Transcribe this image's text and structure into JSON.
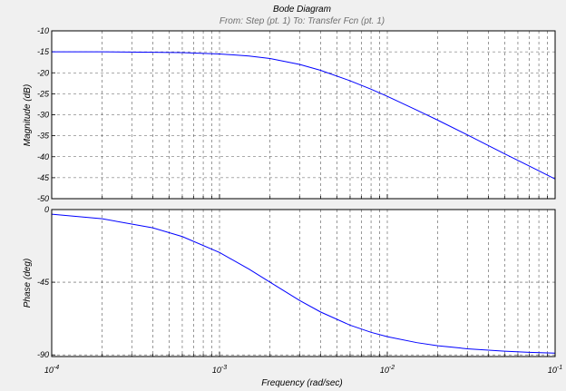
{
  "title": "Bode Diagram",
  "subtitle": "From: Step (pt. 1)  To: Transfer Fcn (pt. 1)",
  "chart_data": {
    "type": "line",
    "title": "Bode Diagram",
    "subtitle": "From: Step (pt. 1)  To: Transfer Fcn (pt. 1)",
    "xlabel": "Frequency  (rad/sec)",
    "xscale": "log",
    "xlim": [
      0.0001,
      0.1
    ],
    "x_tick_labels": [
      {
        "base": "10",
        "exp": "-4"
      },
      {
        "base": "10",
        "exp": "-3"
      },
      {
        "base": "10",
        "exp": "-2"
      },
      {
        "base": "10",
        "exp": "-1"
      }
    ],
    "grid": true,
    "line_color": "#0000ff",
    "panels": [
      {
        "name": "magnitude",
        "ylabel": "Magnitude (dB)",
        "ylim": [
          -50,
          -10
        ],
        "y_ticks": [
          "-10",
          "-15",
          "-20",
          "-25",
          "-30",
          "-35",
          "-40",
          "-45",
          "-50"
        ],
        "y_tick_values": [
          -10,
          -15,
          -20,
          -25,
          -30,
          -35,
          -40,
          -45,
          -50
        ],
        "x": [
          0.0001,
          0.0002,
          0.0004,
          0.0006,
          0.001,
          0.0015,
          0.002,
          0.003,
          0.004,
          0.006,
          0.008,
          0.01,
          0.015,
          0.02,
          0.03,
          0.05,
          0.07,
          0.1
        ],
        "y": [
          -15.0,
          -15.0,
          -15.1,
          -15.2,
          -15.5,
          -16.0,
          -16.6,
          -18.0,
          -19.4,
          -21.9,
          -23.9,
          -25.6,
          -28.9,
          -31.3,
          -34.8,
          -39.3,
          -42.2,
          -45.3
        ]
      },
      {
        "name": "phase",
        "ylabel": "Phase (deg)",
        "ylim": [
          -91,
          0
        ],
        "y_ticks": [
          "0",
          "-45",
          "-90"
        ],
        "y_tick_values": [
          0,
          -45,
          -90
        ],
        "x": [
          0.0001,
          0.0002,
          0.0004,
          0.0006,
          0.001,
          0.0015,
          0.002,
          0.003,
          0.004,
          0.006,
          0.008,
          0.01,
          0.015,
          0.02,
          0.03,
          0.05,
          0.07,
          0.1
        ],
        "y": [
          -2.9,
          -5.7,
          -11.3,
          -16.7,
          -26.6,
          -36.9,
          -45.0,
          -56.3,
          -63.4,
          -71.6,
          -76.0,
          -78.7,
          -82.4,
          -84.3,
          -86.2,
          -87.7,
          -88.4,
          -88.9
        ]
      }
    ]
  }
}
